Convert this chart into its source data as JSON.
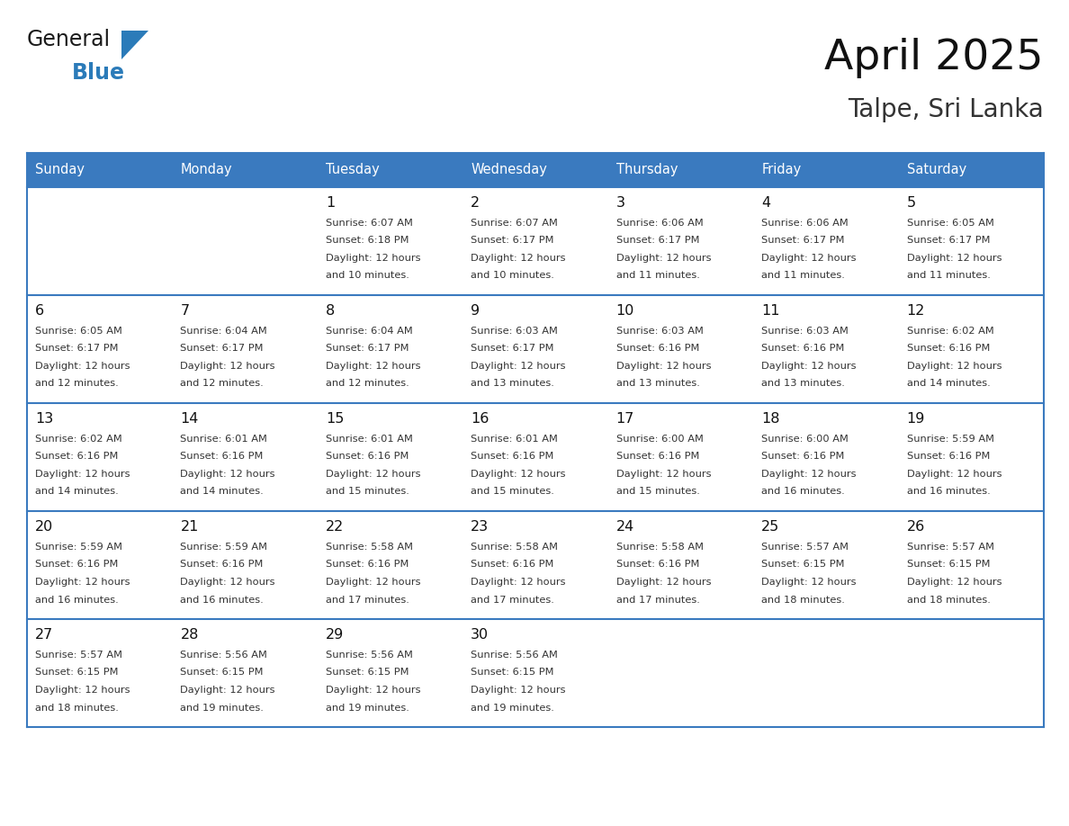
{
  "title": "April 2025",
  "subtitle": "Talpe, Sri Lanka",
  "header_bg_color": "#3a7abf",
  "header_text_color": "#ffffff",
  "cell_bg_color": "#ffffff",
  "alt_cell_bg_color": "#eef2f7",
  "cell_border_color": "#3a7abf",
  "text_color": "#333333",
  "days_of_week": [
    "Sunday",
    "Monday",
    "Tuesday",
    "Wednesday",
    "Thursday",
    "Friday",
    "Saturday"
  ],
  "calendar_data": [
    [
      {
        "day": "",
        "sunrise": "",
        "sunset": "",
        "daylight": ""
      },
      {
        "day": "",
        "sunrise": "",
        "sunset": "",
        "daylight": ""
      },
      {
        "day": "1",
        "sunrise": "6:07 AM",
        "sunset": "6:18 PM",
        "daylight": "12 hours and 10 minutes."
      },
      {
        "day": "2",
        "sunrise": "6:07 AM",
        "sunset": "6:17 PM",
        "daylight": "12 hours and 10 minutes."
      },
      {
        "day": "3",
        "sunrise": "6:06 AM",
        "sunset": "6:17 PM",
        "daylight": "12 hours and 11 minutes."
      },
      {
        "day": "4",
        "sunrise": "6:06 AM",
        "sunset": "6:17 PM",
        "daylight": "12 hours and 11 minutes."
      },
      {
        "day": "5",
        "sunrise": "6:05 AM",
        "sunset": "6:17 PM",
        "daylight": "12 hours and 11 minutes."
      }
    ],
    [
      {
        "day": "6",
        "sunrise": "6:05 AM",
        "sunset": "6:17 PM",
        "daylight": "12 hours and 12 minutes."
      },
      {
        "day": "7",
        "sunrise": "6:04 AM",
        "sunset": "6:17 PM",
        "daylight": "12 hours and 12 minutes."
      },
      {
        "day": "8",
        "sunrise": "6:04 AM",
        "sunset": "6:17 PM",
        "daylight": "12 hours and 12 minutes."
      },
      {
        "day": "9",
        "sunrise": "6:03 AM",
        "sunset": "6:17 PM",
        "daylight": "12 hours and 13 minutes."
      },
      {
        "day": "10",
        "sunrise": "6:03 AM",
        "sunset": "6:16 PM",
        "daylight": "12 hours and 13 minutes."
      },
      {
        "day": "11",
        "sunrise": "6:03 AM",
        "sunset": "6:16 PM",
        "daylight": "12 hours and 13 minutes."
      },
      {
        "day": "12",
        "sunrise": "6:02 AM",
        "sunset": "6:16 PM",
        "daylight": "12 hours and 14 minutes."
      }
    ],
    [
      {
        "day": "13",
        "sunrise": "6:02 AM",
        "sunset": "6:16 PM",
        "daylight": "12 hours and 14 minutes."
      },
      {
        "day": "14",
        "sunrise": "6:01 AM",
        "sunset": "6:16 PM",
        "daylight": "12 hours and 14 minutes."
      },
      {
        "day": "15",
        "sunrise": "6:01 AM",
        "sunset": "6:16 PM",
        "daylight": "12 hours and 15 minutes."
      },
      {
        "day": "16",
        "sunrise": "6:01 AM",
        "sunset": "6:16 PM",
        "daylight": "12 hours and 15 minutes."
      },
      {
        "day": "17",
        "sunrise": "6:00 AM",
        "sunset": "6:16 PM",
        "daylight": "12 hours and 15 minutes."
      },
      {
        "day": "18",
        "sunrise": "6:00 AM",
        "sunset": "6:16 PM",
        "daylight": "12 hours and 16 minutes."
      },
      {
        "day": "19",
        "sunrise": "5:59 AM",
        "sunset": "6:16 PM",
        "daylight": "12 hours and 16 minutes."
      }
    ],
    [
      {
        "day": "20",
        "sunrise": "5:59 AM",
        "sunset": "6:16 PM",
        "daylight": "12 hours and 16 minutes."
      },
      {
        "day": "21",
        "sunrise": "5:59 AM",
        "sunset": "6:16 PM",
        "daylight": "12 hours and 16 minutes."
      },
      {
        "day": "22",
        "sunrise": "5:58 AM",
        "sunset": "6:16 PM",
        "daylight": "12 hours and 17 minutes."
      },
      {
        "day": "23",
        "sunrise": "5:58 AM",
        "sunset": "6:16 PM",
        "daylight": "12 hours and 17 minutes."
      },
      {
        "day": "24",
        "sunrise": "5:58 AM",
        "sunset": "6:16 PM",
        "daylight": "12 hours and 17 minutes."
      },
      {
        "day": "25",
        "sunrise": "5:57 AM",
        "sunset": "6:15 PM",
        "daylight": "12 hours and 18 minutes."
      },
      {
        "day": "26",
        "sunrise": "5:57 AM",
        "sunset": "6:15 PM",
        "daylight": "12 hours and 18 minutes."
      }
    ],
    [
      {
        "day": "27",
        "sunrise": "5:57 AM",
        "sunset": "6:15 PM",
        "daylight": "12 hours and 18 minutes."
      },
      {
        "day": "28",
        "sunrise": "5:56 AM",
        "sunset": "6:15 PM",
        "daylight": "12 hours and 19 minutes."
      },
      {
        "day": "29",
        "sunrise": "5:56 AM",
        "sunset": "6:15 PM",
        "daylight": "12 hours and 19 minutes."
      },
      {
        "day": "30",
        "sunrise": "5:56 AM",
        "sunset": "6:15 PM",
        "daylight": "12 hours and 19 minutes."
      },
      {
        "day": "",
        "sunrise": "",
        "sunset": "",
        "daylight": ""
      },
      {
        "day": "",
        "sunrise": "",
        "sunset": "",
        "daylight": ""
      },
      {
        "day": "",
        "sunrise": "",
        "sunset": "",
        "daylight": ""
      }
    ]
  ],
  "logo_general_color": "#1a1a1a",
  "logo_blue_color": "#2b7bb9",
  "fig_bg_color": "#ffffff"
}
